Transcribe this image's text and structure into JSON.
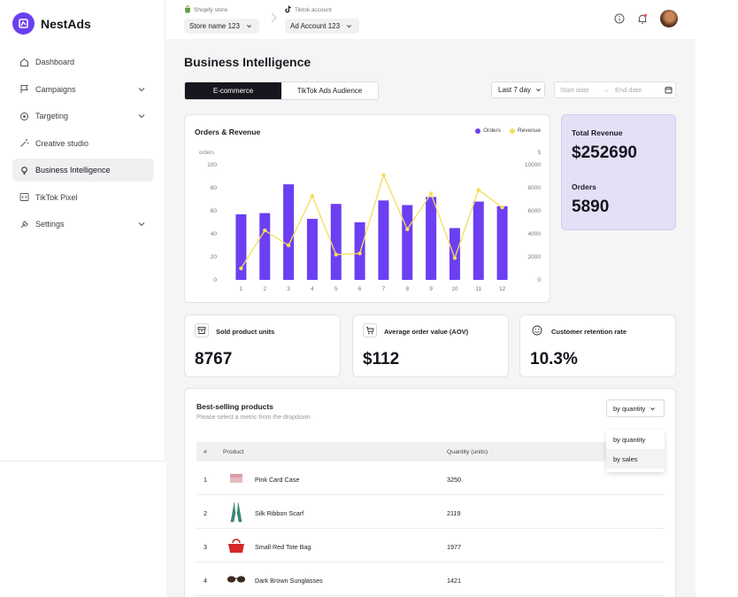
{
  "brand": {
    "name": "NestAds",
    "logo_icon": "nest-logo-icon",
    "accent": "#6c3ff2"
  },
  "sidebar": {
    "items": [
      {
        "label": "Dashboard",
        "icon": "home-icon",
        "active": false,
        "expandable": false
      },
      {
        "label": "Campaigns",
        "icon": "flag-icon",
        "active": false,
        "expandable": true
      },
      {
        "label": "Targeting",
        "icon": "target-icon",
        "active": false,
        "expandable": true
      },
      {
        "label": "Creative studio",
        "icon": "magic-wand-icon",
        "active": false,
        "expandable": false
      },
      {
        "label": "Business Intelligence",
        "icon": "lightbulb-icon",
        "active": true,
        "expandable": false
      },
      {
        "label": "TikTok Pixel",
        "icon": "code-icon",
        "active": false,
        "expandable": false
      },
      {
        "label": "Settings",
        "icon": "wrench-icon",
        "active": false,
        "expandable": true
      }
    ]
  },
  "topbar": {
    "shopify_label": "Shopify store",
    "store_value": "Store name 123",
    "tiktok_label": "Tiktok account",
    "account_value": "Ad Account 123"
  },
  "page": {
    "title": "Business Intelligence",
    "tabs": [
      {
        "label": "E-commerce",
        "active": true
      },
      {
        "label": "TikTok Ads Audience",
        "active": false
      }
    ],
    "range_value": "Last 7 day",
    "start_placeholder": "Start date",
    "date_sep": "→",
    "end_placeholder": "End date"
  },
  "chart_data": {
    "type": "bar",
    "title": "Orders & Revenue",
    "categories": [
      "1",
      "2",
      "3",
      "4",
      "5",
      "6",
      "7",
      "8",
      "9",
      "10",
      "11",
      "12"
    ],
    "series": [
      {
        "name": "Orders",
        "type": "bar",
        "axis": "left",
        "color": "#6c3ff2",
        "values": [
          57,
          58,
          83,
          53,
          66,
          50,
          69,
          65,
          72,
          45,
          68,
          64
        ]
      },
      {
        "name": "Revenue",
        "type": "line",
        "axis": "right",
        "color": "#f5de5a",
        "values": [
          1000,
          4300,
          3000,
          7300,
          2200,
          2300,
          9100,
          4400,
          7500,
          1900,
          7800,
          6300
        ]
      }
    ],
    "y_left": {
      "label": "orders",
      "ylim": [
        0,
        100
      ],
      "ticks": [
        "100",
        "80",
        "60",
        "40",
        "20",
        "0"
      ]
    },
    "y_right": {
      "label": "$",
      "ylim": [
        0,
        10000
      ],
      "ticks": [
        "10000",
        "8000",
        "6000",
        "4000",
        "2000",
        "0"
      ]
    },
    "legend": "top-right",
    "grid": true
  },
  "totals": {
    "revenue_label": "Total Revenue",
    "revenue_value": "$252690",
    "orders_label": "Orders",
    "orders_value": "5890"
  },
  "kpis": [
    {
      "label": "Sold product units",
      "value": "8767",
      "icon": "box-icon"
    },
    {
      "label": "Average order value (AOV)",
      "value": "$112",
      "icon": "cart-icon"
    },
    {
      "label": "Customer retention rate",
      "value": "10.3%",
      "icon": "smiley-icon"
    }
  ],
  "best_selling": {
    "title": "Best-selling products",
    "subtitle": "Please select a metric from the dropdown",
    "metric_value": "by quantity",
    "dropdown_options": [
      "by quantity",
      "by sales"
    ],
    "columns": {
      "index": "#",
      "product": "Product",
      "quantity": "Quantity (units)"
    },
    "rows": [
      {
        "index": "1",
        "name": "Pink Card Case",
        "quantity": "3250",
        "thumb": "card-case-icon"
      },
      {
        "index": "2",
        "name": "Silk Ribbon Scarf",
        "quantity": "2119",
        "thumb": "scarf-icon"
      },
      {
        "index": "3",
        "name": "Small Red Tote Bag",
        "quantity": "1977",
        "thumb": "bag-icon"
      },
      {
        "index": "4",
        "name": "Dark Brown Sunglasses",
        "quantity": "1421",
        "thumb": "sunglasses-icon"
      }
    ]
  }
}
